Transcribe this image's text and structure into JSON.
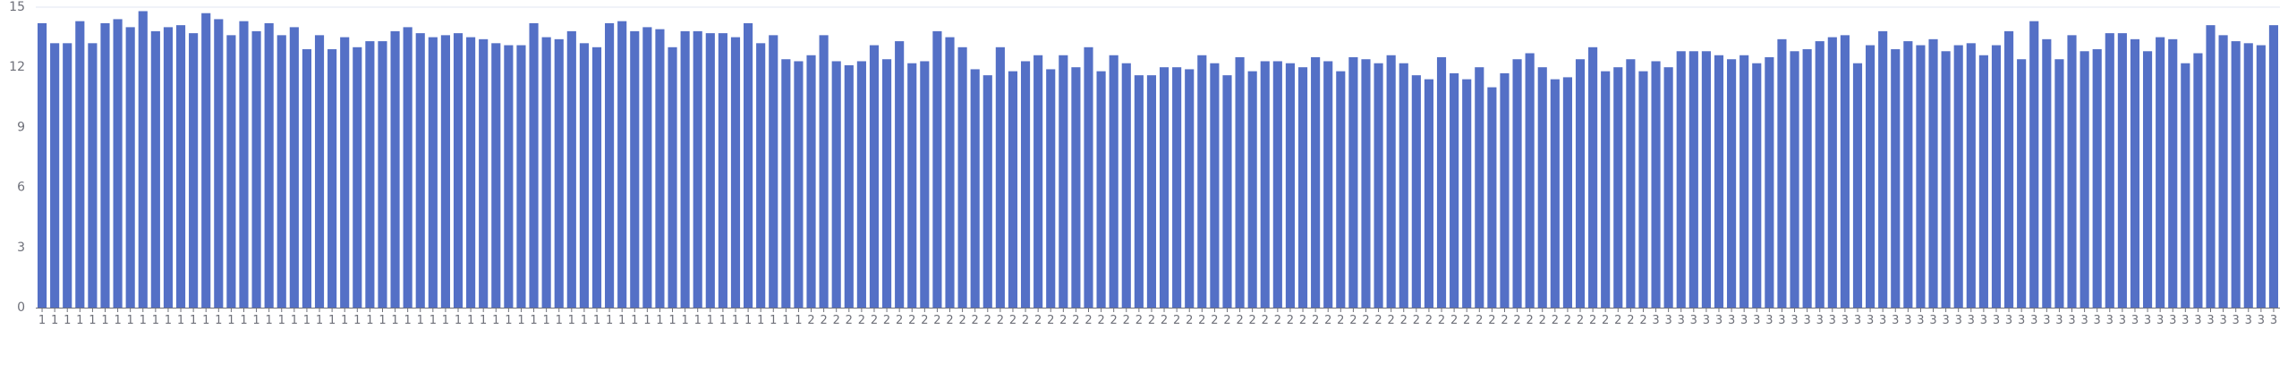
{
  "chart_data": {
    "type": "bar",
    "title": "",
    "xlabel": "",
    "ylabel": "",
    "ylim": [
      0,
      15
    ],
    "yticks": [
      0,
      3,
      6,
      9,
      12,
      15
    ],
    "grid": {
      "horizontal": false,
      "vertical": false,
      "top_border": true
    },
    "legend": "none",
    "bar_color": "#5470c6",
    "axis_color": "#6e7079",
    "label_color": "#6e7079",
    "border_color": "#e0e6f1",
    "categories": [
      "1",
      "1",
      "1",
      "1",
      "1",
      "1",
      "1",
      "1",
      "1",
      "1",
      "1",
      "1",
      "1",
      "1",
      "1",
      "1",
      "1",
      "1",
      "1",
      "1",
      "1",
      "1",
      "1",
      "1",
      "1",
      "1",
      "1",
      "1",
      "1",
      "1",
      "1",
      "1",
      "1",
      "1",
      "1",
      "1",
      "1",
      "1",
      "1",
      "1",
      "1",
      "1",
      "1",
      "1",
      "1",
      "1",
      "1",
      "1",
      "1",
      "1",
      "1",
      "1",
      "1",
      "1",
      "1",
      "1",
      "1",
      "1",
      "1",
      "1",
      "1",
      "2",
      "2",
      "2",
      "2",
      "2",
      "2",
      "2",
      "2",
      "2",
      "2",
      "2",
      "2",
      "2",
      "2",
      "2",
      "2",
      "2",
      "2",
      "2",
      "2",
      "2",
      "2",
      "2",
      "2",
      "2",
      "2",
      "2",
      "2",
      "2",
      "2",
      "2",
      "2",
      "2",
      "2",
      "2",
      "2",
      "2",
      "2",
      "2",
      "2",
      "2",
      "2",
      "2",
      "2",
      "2",
      "2",
      "2",
      "2",
      "2",
      "2",
      "2",
      "2",
      "2",
      "2",
      "2",
      "2",
      "2",
      "2",
      "2",
      "2",
      "2",
      "2",
      "2",
      "2",
      "2",
      "2",
      "2",
      "3",
      "3",
      "3",
      "3",
      "3",
      "3",
      "3",
      "3",
      "3",
      "3",
      "3",
      "3",
      "3",
      "3",
      "3",
      "3",
      "3",
      "3",
      "3",
      "3",
      "3",
      "3",
      "3",
      "3",
      "3",
      "3",
      "3",
      "3",
      "3",
      "3",
      "3",
      "3",
      "3",
      "3",
      "3",
      "3",
      "3",
      "3",
      "3",
      "3",
      "3",
      "3",
      "3",
      "3",
      "3",
      "3",
      "3",
      "3",
      "3",
      "3"
    ],
    "values": [
      14.2,
      13.2,
      13.2,
      14.3,
      13.2,
      14.2,
      14.4,
      14.0,
      14.8,
      13.8,
      14.0,
      14.1,
      13.7,
      14.7,
      14.4,
      13.6,
      14.3,
      13.8,
      14.2,
      13.6,
      14.0,
      12.9,
      13.6,
      12.9,
      13.5,
      13.0,
      13.3,
      13.3,
      13.8,
      14.0,
      13.7,
      13.5,
      13.6,
      13.7,
      13.5,
      13.4,
      13.2,
      13.1,
      13.1,
      14.2,
      13.5,
      13.4,
      13.8,
      13.2,
      13.0,
      14.2,
      14.3,
      13.8,
      14.0,
      13.9,
      13.0,
      13.8,
      13.8,
      13.7,
      13.7,
      13.5,
      14.2,
      13.2,
      13.6,
      12.4,
      12.3,
      12.6,
      13.6,
      12.3,
      12.1,
      12.3,
      13.1,
      12.4,
      13.3,
      12.2,
      12.3,
      13.8,
      13.5,
      13.0,
      11.9,
      11.6,
      13.0,
      11.8,
      12.3,
      12.6,
      11.9,
      12.6,
      12.0,
      13.0,
      11.8,
      12.6,
      12.2,
      11.6,
      11.6,
      12.0,
      12.0,
      11.9,
      12.6,
      12.2,
      11.6,
      12.5,
      11.8,
      12.3,
      12.3,
      12.2,
      12.0,
      12.5,
      12.3,
      11.8,
      12.5,
      12.4,
      12.2,
      12.6,
      12.2,
      11.6,
      11.4,
      12.5,
      11.7,
      11.4,
      12.0,
      11.0,
      11.7,
      12.4,
      12.7,
      12.0,
      11.4,
      11.5,
      12.4,
      13.0,
      11.8,
      12.0,
      12.4,
      11.8,
      12.3,
      12.0,
      12.8,
      12.8,
      12.8,
      12.6,
      12.4,
      12.6,
      12.2,
      12.5,
      13.4,
      12.8,
      12.9,
      13.3,
      13.5,
      13.6,
      12.2,
      13.1,
      13.8,
      12.9,
      13.3,
      13.1,
      13.4,
      12.8,
      13.1,
      13.2,
      12.6,
      13.1,
      13.8,
      12.4,
      14.3,
      13.4,
      12.4,
      13.6,
      12.8,
      12.9,
      13.7,
      13.7,
      13.4,
      12.8,
      13.5,
      13.4,
      12.2,
      12.7,
      14.1,
      13.6,
      13.3,
      13.2,
      13.1,
      14.1
    ]
  }
}
